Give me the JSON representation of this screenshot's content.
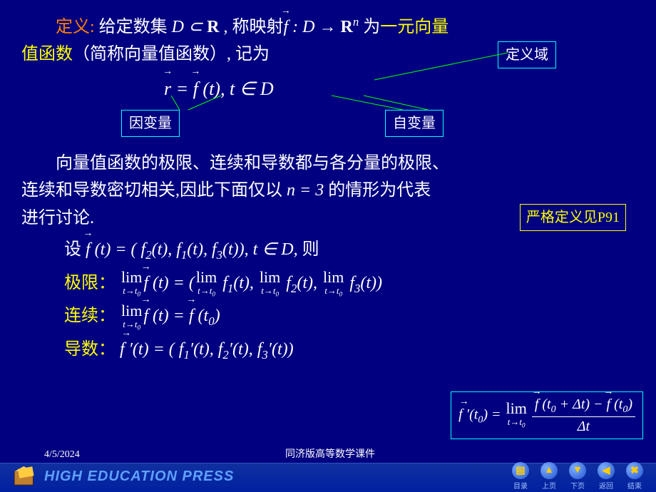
{
  "definition": {
    "label": "定义:",
    "text1_a": " 给定数集 ",
    "set": "D ⊂ ",
    "R": "R",
    "text1_b": " , 称映射",
    "map1": "f",
    "map2": " : D → ",
    "Rn_R": "R",
    "Rn_n": "n",
    "text1_c": " 为",
    "term": "一元向量",
    "line2a": "值函数",
    "paren": "（简称向量值函数）",
    "line2b": ", 记为"
  },
  "equation": {
    "r": "r",
    "eq": " = ",
    "f": "f",
    "t": " (t),    t ∈ D"
  },
  "labels": {
    "domain": "定义域",
    "dependent": "因变量",
    "independent": "自变量"
  },
  "para2": {
    "l1": "　　向量值函数的极限、连续和导数都与各分量的极限、",
    "l2a": "连续和导数密切相关,因此下面仅以 ",
    "neq": "n = 3",
    "l2b": " 的情形为代表",
    "l3": "进行讨论."
  },
  "note": "严格定义见P91",
  "setline": {
    "pre": "设",
    "f": "f",
    "body": " (t) = ( f",
    "s2": "2",
    "p1": "(t), f",
    "s1": "1",
    "p2": "(t), f",
    "s3": "3",
    "p3": "(t)),  t ∈ D,  ",
    "post": "则"
  },
  "limit": {
    "label": "极限：",
    "lim": "lim",
    "sub": "t→t",
    "sub0": "0",
    "f": "f",
    "eq": " (t) = (",
    "f1": "f",
    "c1": "1",
    "m": "(t), ",
    "c2": "2",
    "c3": "3",
    "end": "(t))"
  },
  "cont": {
    "label": "连续：",
    "f": "f",
    "body": " (t) = ",
    "f2": "f",
    "t0a": " (t",
    "t0b": ")",
    "z": "0"
  },
  "deriv": {
    "label": "导数：",
    "f": "f ′",
    "body": "(t) = ( f",
    "s1": "1",
    "p": "′(t),  f",
    "s2": "2",
    "s3": "3",
    "end": "′(t))"
  },
  "deriv_box": {
    "f": "f ′",
    "t0": "(t",
    "z": "0",
    "eq": ") = ",
    "lim": "lim",
    "sub": "t→t",
    "numf1": "f",
    "num1": " (t",
    "dt": " + Δt) − ",
    "numf2": "f",
    "num2": " (t",
    "close": ")",
    "den": "Δt"
  },
  "footer": {
    "date": "4/5/2024",
    "course": "同济版高等数学课件",
    "hep": "HIGH EDUCATION PRESS"
  },
  "nav": [
    {
      "icon": "▤",
      "label": "目录"
    },
    {
      "icon": "▲",
      "label": "上页"
    },
    {
      "icon": "▼",
      "label": "下页"
    },
    {
      "icon": "◀",
      "label": "返回"
    },
    {
      "icon": "✖",
      "label": "结束"
    }
  ],
  "colors": {
    "bg": "#000080",
    "yellow": "#ffff00",
    "orange": "#ff8000",
    "cyan": "#00ffff",
    "green": "#00ff00"
  }
}
